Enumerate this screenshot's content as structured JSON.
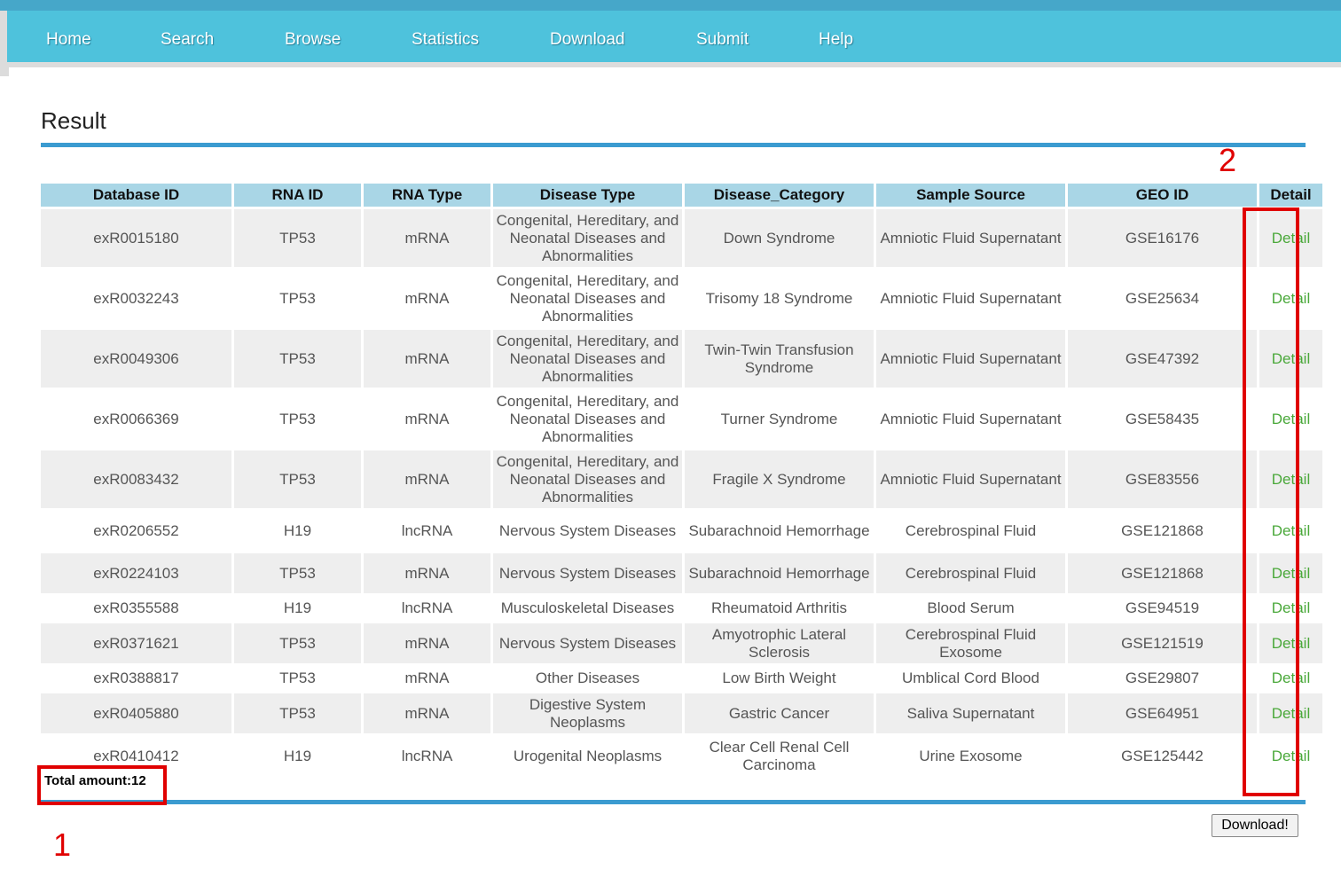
{
  "nav": [
    "Home",
    "Search",
    "Browse",
    "Statistics",
    "Download",
    "Submit",
    "Help"
  ],
  "page_title": "Result",
  "table": {
    "headers": [
      "Database ID",
      "RNA ID",
      "RNA Type",
      "Disease Type",
      "Disease_Category",
      "Sample Source",
      "GEO ID",
      "Detail"
    ],
    "rows": [
      [
        "exR0015180",
        "TP53",
        "mRNA",
        "Congenital, Hereditary, and Neonatal Diseases and Abnormalities",
        "Down Syndrome",
        "Amniotic Fluid Supernatant",
        "GSE16176",
        "Detail"
      ],
      [
        "exR0032243",
        "TP53",
        "mRNA",
        "Congenital, Hereditary, and Neonatal Diseases and Abnormalities",
        "Trisomy 18 Syndrome",
        "Amniotic Fluid Supernatant",
        "GSE25634",
        "Detail"
      ],
      [
        "exR0049306",
        "TP53",
        "mRNA",
        "Congenital, Hereditary, and Neonatal Diseases and Abnormalities",
        "Twin-Twin Transfusion Syndrome",
        "Amniotic Fluid Supernatant",
        "GSE47392",
        "Detail"
      ],
      [
        "exR0066369",
        "TP53",
        "mRNA",
        "Congenital, Hereditary, and Neonatal Diseases and Abnormalities",
        "Turner Syndrome",
        "Amniotic Fluid Supernatant",
        "GSE58435",
        "Detail"
      ],
      [
        "exR0083432",
        "TP53",
        "mRNA",
        "Congenital, Hereditary, and Neonatal Diseases and Abnormalities",
        "Fragile X Syndrome",
        "Amniotic Fluid Supernatant",
        "GSE83556",
        "Detail"
      ],
      [
        "exR0206552",
        "H19",
        "lncRNA",
        "Nervous System Diseases",
        "Subarachnoid Hemorrhage",
        "Cerebrospinal Fluid",
        "GSE121868",
        "Detail"
      ],
      [
        "exR0224103",
        "TP53",
        "mRNA",
        "Nervous System Diseases",
        "Subarachnoid Hemorrhage",
        "Cerebrospinal Fluid",
        "GSE121868",
        "Detail"
      ],
      [
        "exR0355588",
        "H19",
        "lncRNA",
        "Musculoskeletal Diseases",
        "Rheumatoid Arthritis",
        "Blood Serum",
        "GSE94519",
        "Detail"
      ],
      [
        "exR0371621",
        "TP53",
        "mRNA",
        "Nervous System Diseases",
        "Amyotrophic Lateral Sclerosis",
        "Cerebrospinal Fluid Exosome",
        "GSE121519",
        "Detail"
      ],
      [
        "exR0388817",
        "TP53",
        "mRNA",
        "Other Diseases",
        "Low Birth Weight",
        "Umblical Cord Blood",
        "GSE29807",
        "Detail"
      ],
      [
        "exR0405880",
        "TP53",
        "mRNA",
        "Digestive System Neoplasms",
        "Gastric Cancer",
        "Saliva Supernatant",
        "GSE64951",
        "Detail"
      ],
      [
        "exR0410412",
        "H19",
        "lncRNA",
        "Urogenital Neoplasms",
        "Clear Cell Renal Cell Carcinoma",
        "Urine Exosome",
        "GSE125442",
        "Detail"
      ]
    ]
  },
  "total_amount": "Total amount:12",
  "download_button": "Download!",
  "annotations": [
    "1",
    "2"
  ],
  "colors": {
    "nav": "#4ec2dc",
    "header": "#a9d6e6",
    "rule": "#3b9bd0",
    "detail_link": "#4aa83a",
    "annotation": "#e00000"
  }
}
